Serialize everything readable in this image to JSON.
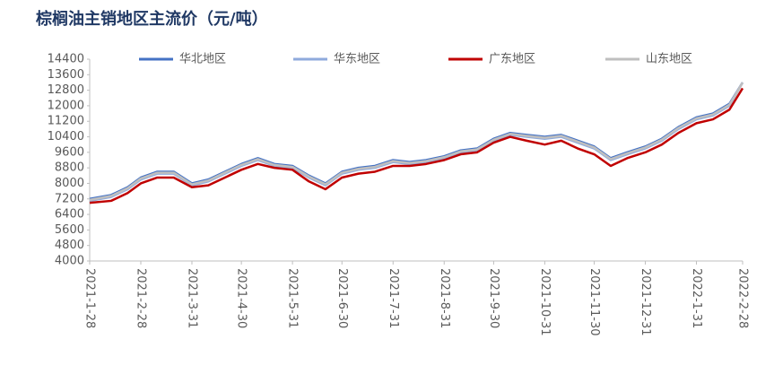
{
  "chart_data": {
    "type": "line",
    "title": "棕榈油主销地区主流价（元/吨）",
    "x": [
      "2021-1-28",
      "2021-2-10",
      "2021-2-20",
      "2021-2-28",
      "2021-3-10",
      "2021-3-20",
      "2021-3-31",
      "2021-4-10",
      "2021-4-20",
      "2021-4-30",
      "2021-5-10",
      "2021-5-20",
      "2021-5-31",
      "2021-6-10",
      "2021-6-20",
      "2021-6-30",
      "2021-7-10",
      "2021-7-20",
      "2021-7-31",
      "2021-8-10",
      "2021-8-20",
      "2021-8-31",
      "2021-9-10",
      "2021-9-20",
      "2021-9-30",
      "2021-10-10",
      "2021-10-20",
      "2021-10-31",
      "2021-11-10",
      "2021-11-20",
      "2021-11-30",
      "2021-12-10",
      "2021-12-20",
      "2021-12-31",
      "2022-1-10",
      "2022-1-20",
      "2022-1-31",
      "2022-2-10",
      "2022-2-20",
      "2022-2-28"
    ],
    "series": [
      {
        "name": "华北地区",
        "color": "#4472c4",
        "values": [
          7200,
          7400,
          7800,
          8300,
          8600,
          8600,
          8000,
          8200,
          8600,
          9000,
          9300,
          9000,
          8900,
          8400,
          8000,
          8600,
          8800,
          8900,
          9200,
          9100,
          9200,
          9400,
          9700,
          9800,
          10300,
          10600,
          10500,
          10400,
          10500,
          10200,
          9900,
          9300,
          9600,
          9900,
          10300,
          10900,
          11400,
          11600,
          12100,
          13200
        ]
      },
      {
        "name": "华东地区",
        "color": "#8faadc",
        "values": [
          7100,
          7300,
          7700,
          8200,
          8500,
          8500,
          7900,
          8100,
          8500,
          8900,
          9200,
          8900,
          8800,
          8300,
          7900,
          8500,
          8700,
          8800,
          9100,
          9000,
          9100,
          9300,
          9600,
          9700,
          10200,
          10500,
          10400,
          10300,
          10400,
          10100,
          9800,
          9200,
          9500,
          9800,
          10200,
          10800,
          11300,
          11500,
          12000,
          13200
        ]
      },
      {
        "name": "广东地区",
        "color": "#c00000",
        "values": [
          7000,
          7100,
          7500,
          8000,
          8300,
          8300,
          7800,
          7900,
          8300,
          8700,
          9000,
          8800,
          8700,
          8100,
          7700,
          8300,
          8500,
          8600,
          8900,
          8900,
          9000,
          9200,
          9500,
          9600,
          10100,
          10400,
          10200,
          10000,
          10200,
          9800,
          9500,
          8900,
          9300,
          9600,
          10000,
          10600,
          11100,
          11300,
          11800,
          12900
        ]
      },
      {
        "name": "山东地区",
        "color": "#bfbfbf",
        "values": [
          7150,
          7350,
          7750,
          8250,
          8550,
          8550,
          7950,
          8150,
          8550,
          8950,
          9250,
          8950,
          8850,
          8350,
          7950,
          8550,
          8750,
          8850,
          9150,
          9050,
          9150,
          9350,
          9650,
          9750,
          10250,
          10550,
          10450,
          10350,
          10450,
          10150,
          9850,
          9250,
          9550,
          9850,
          10250,
          10850,
          11350,
          11550,
          12050,
          13200
        ]
      }
    ],
    "xlim": [
      "2021-1-28",
      "2022-2-28"
    ],
    "xticks": [
      "2021-1-28",
      "2021-2-28",
      "2021-3-31",
      "2021-4-30",
      "2021-5-31",
      "2021-6-30",
      "2021-7-31",
      "2021-8-31",
      "2021-9-30",
      "2021-10-31",
      "2021-11-30",
      "2021-12-31",
      "2022-1-31",
      "2022-2-28"
    ],
    "ylim": [
      4000,
      14400
    ],
    "yticks": [
      4000,
      4800,
      5600,
      6400,
      7200,
      8000,
      8800,
      9600,
      10400,
      11200,
      12000,
      12800,
      13600,
      14400
    ]
  }
}
